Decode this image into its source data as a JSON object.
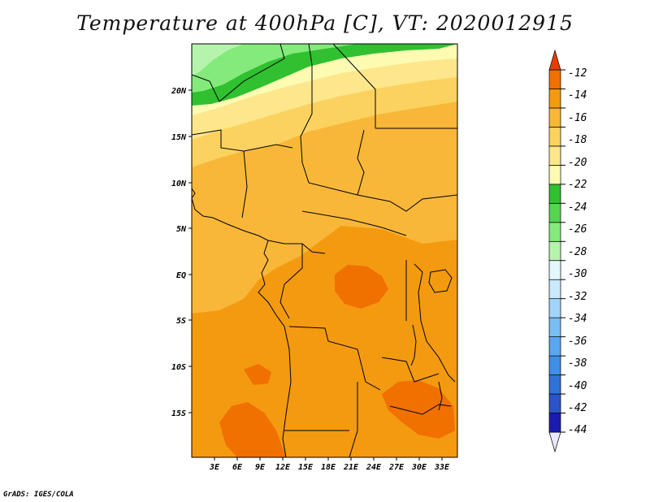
{
  "title": "Temperature at 400hPa [C], VT: 2020012915",
  "credit": "GrADS: IGES/COLA",
  "map": {
    "lon_labels": [
      "3E",
      "6E",
      "9E",
      "12E",
      "15E",
      "18E",
      "21E",
      "24E",
      "27E",
      "30E",
      "33E"
    ],
    "lat_labels": [
      "20N",
      "15N",
      "10N",
      "5N",
      "EQ",
      "5S",
      "10S",
      "15S"
    ]
  },
  "colorbar": {
    "labels": [
      "-12",
      "-14",
      "-16",
      "-18",
      "-20",
      "-22",
      "-24",
      "-26",
      "-28",
      "-30",
      "-32",
      "-34",
      "-36",
      "-38",
      "-40",
      "-42",
      "-44"
    ],
    "colors": [
      "#e8e8ff",
      "#1b1bb0",
      "#2a55c8",
      "#2f73d6",
      "#3f8fe6",
      "#58a8f0",
      "#78bef5",
      "#a2d4fa",
      "#caeafc",
      "#e4f7fd",
      "#b6f4ae",
      "#85ea7c",
      "#55d550",
      "#30c030",
      "#fdfbb2",
      "#fde68c",
      "#fbd25f",
      "#f8b738",
      "#f49a10",
      "#f07000",
      "#e93d00"
    ]
  }
}
